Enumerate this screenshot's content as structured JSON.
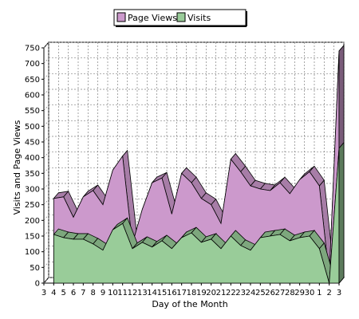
{
  "chart_data": {
    "type": "area",
    "xlabel": "Day of the Month",
    "ylabel": "Visits and Page Views",
    "ylim": [
      0,
      750
    ],
    "yticks": [
      0,
      50,
      100,
      150,
      200,
      250,
      300,
      350,
      400,
      450,
      500,
      550,
      600,
      650,
      700,
      750
    ],
    "categories": [
      "3",
      "4",
      "5",
      "6",
      "7",
      "8",
      "9",
      "10",
      "11",
      "12",
      "13",
      "14",
      "15",
      "16",
      "17",
      "18",
      "19",
      "20",
      "21",
      "22",
      "23",
      "24",
      "25",
      "26",
      "27",
      "28",
      "29",
      "30",
      "1",
      "2",
      "3"
    ],
    "grid": true,
    "legend_position": "top-center",
    "series": [
      {
        "name": "Page Views",
        "color": "#cc99cc",
        "values": [
          null,
          270,
          275,
          210,
          275,
          295,
          250,
          360,
          405,
          125,
          235,
          320,
          335,
          220,
          350,
          320,
          270,
          250,
          190,
          395,
          355,
          310,
          300,
          295,
          320,
          285,
          330,
          355,
          310,
          20,
          740
        ]
      },
      {
        "name": "Visits",
        "color": "#99cc99",
        "values": [
          null,
          155,
          145,
          140,
          140,
          125,
          105,
          170,
          190,
          110,
          130,
          115,
          135,
          110,
          145,
          160,
          130,
          140,
          110,
          150,
          120,
          105,
          145,
          150,
          155,
          135,
          145,
          150,
          110,
          0,
          430
        ]
      }
    ]
  }
}
